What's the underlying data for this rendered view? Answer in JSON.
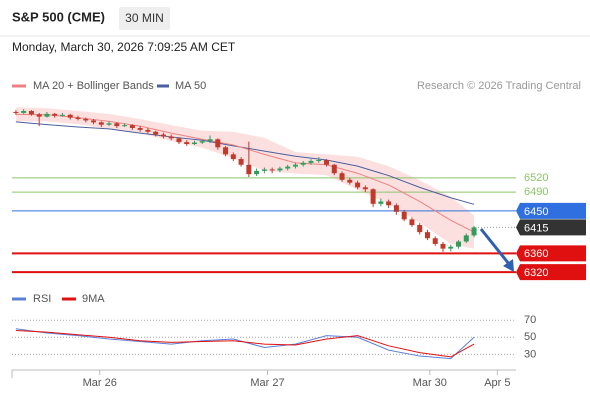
{
  "chart_data": {
    "type": "candlestick",
    "title": "S&P 500 (CME)",
    "timeframe": "30 MIN",
    "subtitle": "Monday, March 30, 2026 7:09:25 AM CET",
    "source": "Research © 2026 Trading Central",
    "up_color": "#2e9e5b",
    "down_color": "#c0392b",
    "xlim": [
      -0.5,
      64.4
    ],
    "xticks": [
      {
        "value": 10.8,
        "label": "Mar 26"
      },
      {
        "value": 32.4,
        "label": "Mar 27"
      },
      {
        "value": 53.3,
        "label": "Mar 30"
      },
      {
        "value": 62,
        "label": "Apr 5"
      }
    ],
    "ylim": [
      6297,
      6696
    ],
    "candles": [
      [
        6660,
        6664,
        6654,
        6658
      ],
      [
        6658,
        6666,
        6656,
        6662
      ],
      [
        6662,
        6664,
        6652,
        6655
      ],
      [
        6655,
        6658,
        6630,
        6650
      ],
      [
        6650,
        6660,
        6648,
        6656
      ],
      [
        6656,
        6658,
        6648,
        6652
      ],
      [
        6652,
        6658,
        6650,
        6654
      ],
      [
        6654,
        6656,
        6644,
        6648
      ],
      [
        6648,
        6652,
        6642,
        6645
      ],
      [
        6645,
        6648,
        6638,
        6642
      ],
      [
        6642,
        6645,
        6634,
        6638
      ],
      [
        6638,
        6640,
        6628,
        6633
      ],
      [
        6633,
        6640,
        6630,
        6636
      ],
      [
        6636,
        6638,
        6626,
        6630
      ],
      [
        6630,
        6636,
        6628,
        6632
      ],
      [
        6632,
        6634,
        6622,
        6626
      ],
      [
        6626,
        6630,
        6618,
        6622
      ],
      [
        6622,
        6626,
        6614,
        6618
      ],
      [
        6618,
        6620,
        6608,
        6612
      ],
      [
        6612,
        6616,
        6604,
        6608
      ],
      [
        6608,
        6612,
        6600,
        6604
      ],
      [
        6604,
        6606,
        6592,
        6596
      ],
      [
        6596,
        6600,
        6588,
        6592
      ],
      [
        6592,
        6599,
        6590,
        6595
      ],
      [
        6595,
        6602,
        6592,
        6598
      ],
      [
        6598,
        6610,
        6594,
        6602
      ],
      [
        6602,
        6604,
        6580,
        6585
      ],
      [
        6585,
        6588,
        6566,
        6570
      ],
      [
        6570,
        6574,
        6556,
        6560
      ],
      [
        6560,
        6564,
        6544,
        6548
      ],
      [
        6548,
        6597,
        6522,
        6528
      ],
      [
        6528,
        6540,
        6524,
        6535
      ],
      [
        6535,
        6542,
        6530,
        6538
      ],
      [
        6538,
        6542,
        6530,
        6536
      ],
      [
        6536,
        6544,
        6532,
        6540
      ],
      [
        6540,
        6548,
        6536,
        6544
      ],
      [
        6544,
        6552,
        6540,
        6548
      ],
      [
        6548,
        6556,
        6544,
        6552
      ],
      [
        6552,
        6560,
        6548,
        6556
      ],
      [
        6556,
        6564,
        6552,
        6558
      ],
      [
        6558,
        6560,
        6544,
        6548
      ],
      [
        6548,
        6550,
        6526,
        6530
      ],
      [
        6530,
        6534,
        6512,
        6516
      ],
      [
        6516,
        6520,
        6506,
        6510
      ],
      [
        6510,
        6514,
        6496,
        6500
      ],
      [
        6500,
        6504,
        6490,
        6496
      ],
      [
        6496,
        6498,
        6458,
        6465
      ],
      [
        6465,
        6476,
        6460,
        6470
      ],
      [
        6470,
        6474,
        6456,
        6462
      ],
      [
        6462,
        6466,
        6442,
        6448
      ],
      [
        6448,
        6452,
        6428,
        6432
      ],
      [
        6432,
        6436,
        6416,
        6420
      ],
      [
        6420,
        6424,
        6400,
        6405
      ],
      [
        6405,
        6410,
        6388,
        6392
      ],
      [
        6392,
        6396,
        6376,
        6380
      ],
      [
        6380,
        6384,
        6363,
        6370
      ],
      [
        6370,
        6378,
        6364,
        6374
      ],
      [
        6374,
        6388,
        6370,
        6385
      ],
      [
        6385,
        6402,
        6382,
        6398
      ],
      [
        6398,
        6418,
        6394,
        6415
      ]
    ],
    "ma20": {
      "name": "MA 20 + Bollinger Bands",
      "color": "#f08080",
      "band_color": "#fbd3d3",
      "x": [
        0,
        4,
        8,
        12,
        16,
        20,
        24,
        28,
        32,
        36,
        40,
        44,
        48,
        52,
        56,
        59
      ],
      "values": [
        6655,
        6654,
        6648,
        6640,
        6630,
        6615,
        6602,
        6590,
        6570,
        6552,
        6548,
        6530,
        6505,
        6470,
        6430,
        6405
      ],
      "upper": [
        6670,
        6668,
        6662,
        6656,
        6645,
        6632,
        6620,
        6618,
        6605,
        6575,
        6570,
        6565,
        6545,
        6515,
        6480,
        6440
      ],
      "lower": [
        6640,
        6640,
        6634,
        6624,
        6615,
        6598,
        6584,
        6562,
        6535,
        6529,
        6526,
        6495,
        6465,
        6425,
        6380,
        6370
      ]
    },
    "ma50": {
      "name": "MA 50",
      "color": "#4a5fa0",
      "x": [
        0,
        4,
        8,
        12,
        16,
        20,
        24,
        28,
        32,
        36,
        40,
        44,
        48,
        52,
        56,
        59
      ],
      "values": [
        6639,
        6633,
        6628,
        6624,
        6615,
        6607,
        6600,
        6588,
        6577,
        6566,
        6558,
        6545,
        6525,
        6500,
        6478,
        6464
      ]
    },
    "levels": [
      {
        "value": 6520,
        "color": "#8cc56a",
        "style": "text"
      },
      {
        "value": 6490,
        "color": "#8cc56a",
        "style": "text"
      },
      {
        "value": 6450,
        "color": "#2f6fe0",
        "style": "box"
      },
      {
        "value": 6415,
        "color": "#333333",
        "style": "box"
      },
      {
        "value": 6360,
        "color": "#e01010",
        "style": "box"
      },
      {
        "value": 6320,
        "color": "#e01010",
        "style": "box"
      }
    ],
    "rsi": {
      "ylim": [
        14,
        82
      ],
      "yticks": [
        70,
        50,
        30
      ],
      "series": [
        {
          "name": "RSI",
          "color": "#5b7fd6",
          "x": [
            0,
            4,
            8,
            12,
            16,
            20,
            24,
            28,
            32,
            36,
            40,
            44,
            48,
            52,
            56,
            59
          ],
          "values": [
            60,
            55,
            52,
            48,
            45,
            42,
            46,
            48,
            38,
            42,
            52,
            50,
            35,
            28,
            25,
            50
          ]
        },
        {
          "name": "9MA",
          "color": "#e01010",
          "x": [
            0,
            4,
            8,
            12,
            16,
            20,
            24,
            28,
            32,
            36,
            40,
            44,
            48,
            52,
            56,
            59
          ],
          "values": [
            58,
            56,
            53,
            50,
            46,
            44,
            45,
            46,
            42,
            41,
            48,
            52,
            40,
            32,
            27,
            42
          ]
        }
      ]
    }
  }
}
